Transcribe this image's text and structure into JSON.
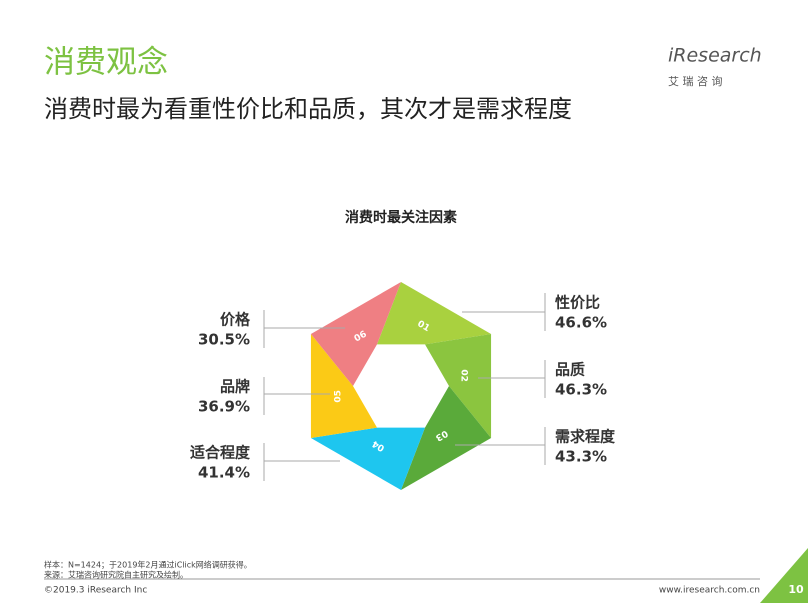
{
  "header": {
    "title": "消费观念",
    "subtitle": "消费时最为看重性价比和品质，其次才是需求程度",
    "logo": "iResearch",
    "logo_sub": "艾 瑞 咨 询"
  },
  "infographic": {
    "title": "消费时最关注因素",
    "items": [
      {
        "number": "01",
        "label": "性价比",
        "value": "46.6%",
        "color": "#a9d13f"
      },
      {
        "number": "02",
        "label": "品质",
        "value": "46.3%",
        "color": "#8bc53f"
      },
      {
        "number": "03",
        "label": "需求程度",
        "value": "43.3%",
        "color": "#5aaa3a"
      },
      {
        "number": "04",
        "label": "适合程度",
        "value": "41.4%",
        "color": "#1ec6ef"
      },
      {
        "number": "05",
        "label": "品牌",
        "value": "36.9%",
        "color": "#fbca16"
      },
      {
        "number": "06",
        "label": "价格",
        "value": "30.5%",
        "color": "#ef7f83"
      }
    ]
  },
  "footer": {
    "sample": "样本：N=1424；于2019年2月通过iClick网络调研获得。",
    "source": "来源：艾瑞咨询研究院自主研究及绘制。",
    "copyright": "©2019.3 iResearch Inc",
    "website": "www.iresearch.com.cn",
    "page": "10"
  }
}
